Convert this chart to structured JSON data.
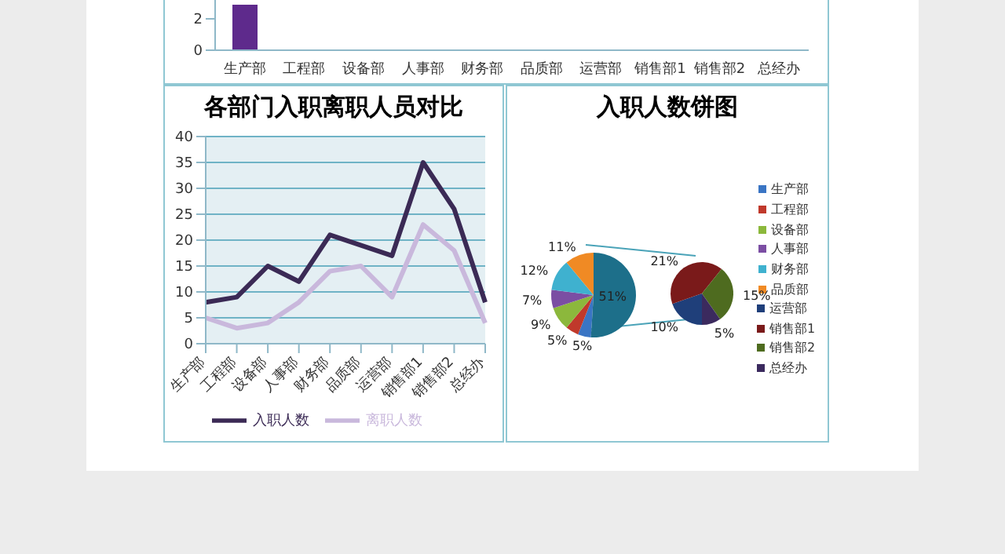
{
  "chart_data": [
    {
      "type": "bar",
      "categories": [
        "生产部",
        "工程部",
        "设备部",
        "人事部",
        "财务部",
        "品质部",
        "运营部",
        "销售部1",
        "销售部2",
        "总经办"
      ],
      "values": [
        2.9,
        null,
        null,
        null,
        null,
        null,
        null,
        null,
        null,
        null
      ],
      "color": "#5e2a8c",
      "ylim": [
        0,
        3.4
      ],
      "yticks": [
        0,
        2
      ],
      "grid": false,
      "legend": false
    },
    {
      "type": "line",
      "title": "各部门入职离职人员对比",
      "categories": [
        "生产部",
        "工程部",
        "设备部",
        "人事部",
        "财务部",
        "品质部",
        "运营部",
        "销售部1",
        "销售部2",
        "总经办"
      ],
      "series": [
        {
          "name": "入职人数",
          "color": "#3b2a55",
          "values": [
            8,
            9,
            15,
            12,
            21,
            19,
            17,
            35,
            26,
            8
          ]
        },
        {
          "name": "离职人数",
          "color": "#c9b8dc",
          "values": [
            5,
            3,
            4,
            8,
            14,
            15,
            9,
            23,
            18,
            4
          ]
        }
      ],
      "ylim": [
        0,
        40
      ],
      "yticks": [
        0,
        5,
        10,
        15,
        20,
        25,
        30,
        35,
        40
      ],
      "grid": "y",
      "legend": "bottom",
      "marker": "none"
    },
    {
      "type": "pie",
      "title": "入职人数饼图",
      "categories": [
        "生产部",
        "工程部",
        "设备部",
        "人事部",
        "财务部",
        "品质部",
        null
      ],
      "values": [
        5,
        5,
        9,
        7,
        12,
        11,
        51
      ],
      "value_labels": [
        "5%",
        "5%",
        "9%",
        "7%",
        "12%",
        "11%",
        "51%"
      ],
      "colors": [
        "#3a75c4",
        "#c0392b",
        "#8cb83c",
        "#7b4ea3",
        "#3fb1cf",
        "#f08a24",
        "#1d6f8a"
      ],
      "legend": "right"
    },
    {
      "type": "pie",
      "categories": [
        "运营部",
        "销售部1",
        "销售部2",
        "总经办"
      ],
      "values": [
        10,
        21,
        15,
        5
      ],
      "value_labels": [
        "10%",
        "21%",
        "15%",
        "5%"
      ],
      "colors": [
        "#1f3f7a",
        "#7a1a1a",
        "#4e6b1f",
        "#3b2a5e"
      ],
      "legend": "right"
    }
  ]
}
